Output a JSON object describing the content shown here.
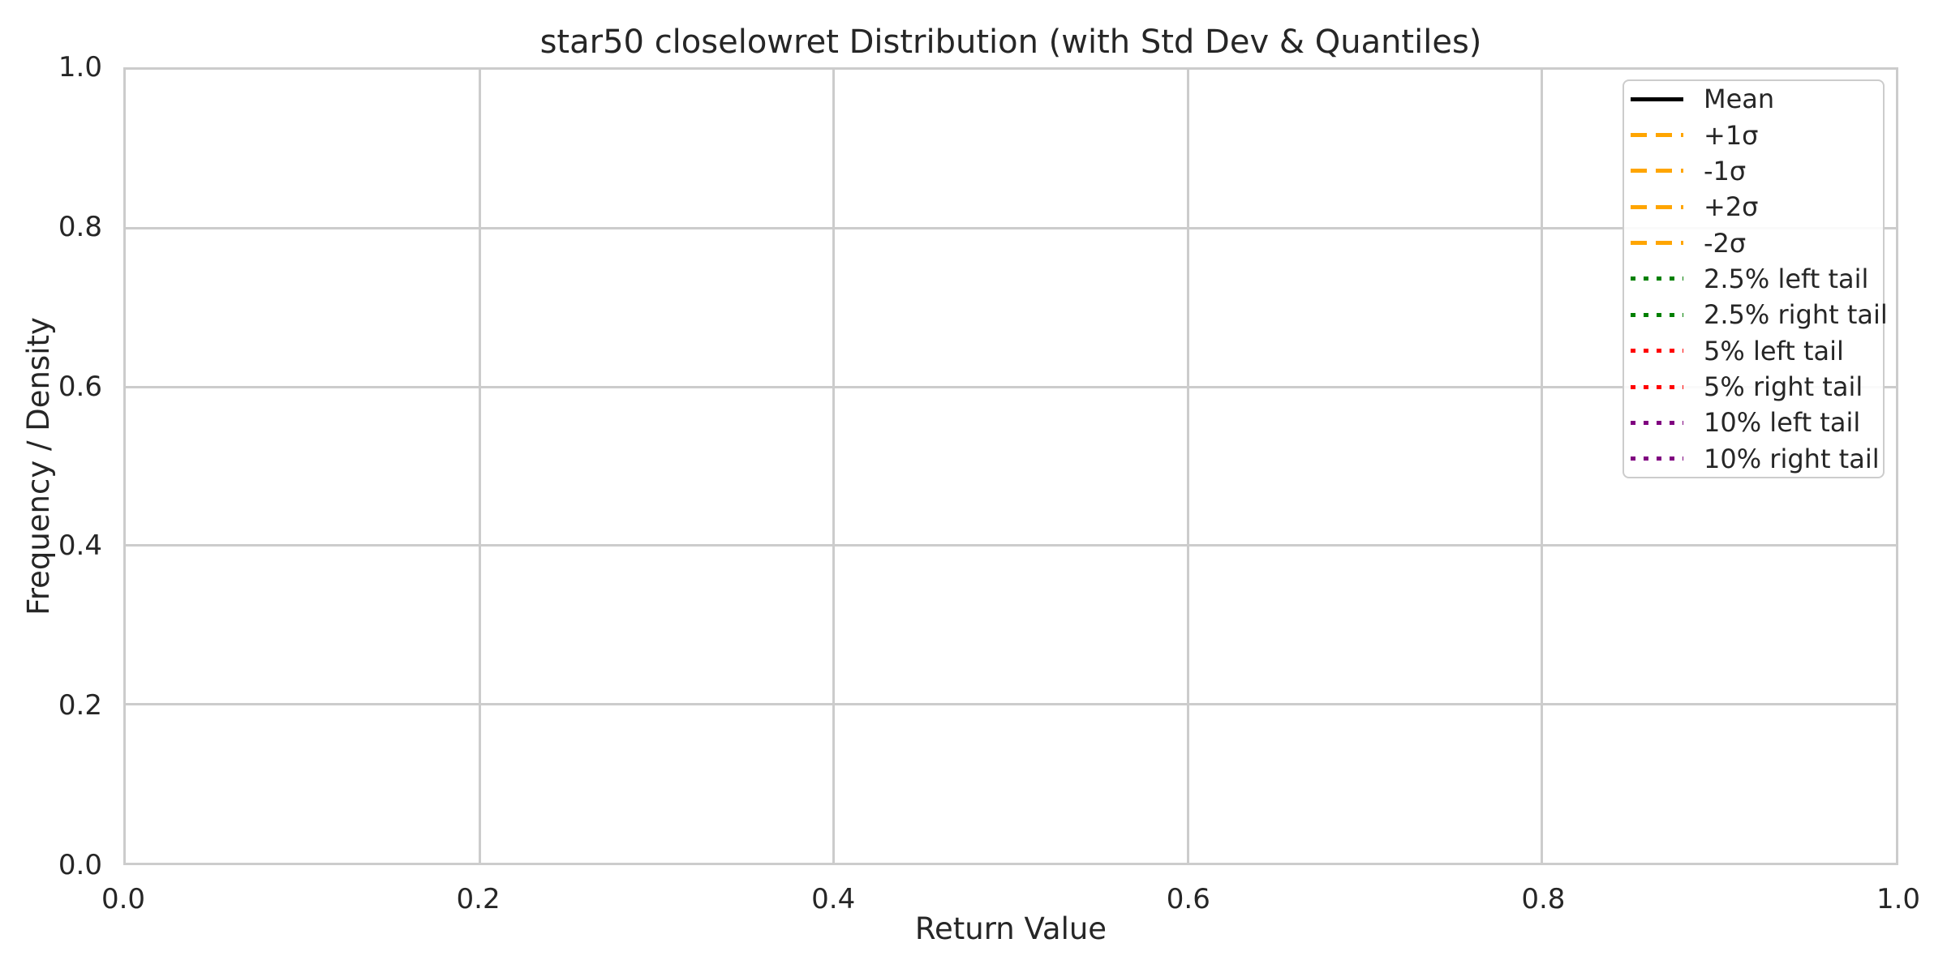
{
  "figure": {
    "title": "star50 closelowret Distribution (with Std Dev & Quantiles)",
    "xlabel": "Return Value",
    "ylabel": "Frequency / Density",
    "x_tick_labels": [
      "0.0",
      "0.2",
      "0.4",
      "0.6",
      "0.8",
      "1.0"
    ],
    "y_tick_labels": [
      "0.0",
      "0.2",
      "0.4",
      "0.6",
      "0.8",
      "1.0"
    ]
  },
  "legend": {
    "items": [
      {
        "label": "Mean",
        "color": "#000000",
        "style": "solid"
      },
      {
        "label": "+1σ",
        "color": "#FFA500",
        "style": "dashed"
      },
      {
        "label": "-1σ",
        "color": "#FFA500",
        "style": "dashed"
      },
      {
        "label": "+2σ",
        "color": "#FFA500",
        "style": "dashed"
      },
      {
        "label": "-2σ",
        "color": "#FFA500",
        "style": "dashed"
      },
      {
        "label": "2.5% left tail",
        "color": "#008000",
        "style": "dotted"
      },
      {
        "label": "2.5% right tail",
        "color": "#008000",
        "style": "dotted"
      },
      {
        "label": "5% left tail",
        "color": "#FF0000",
        "style": "dotted"
      },
      {
        "label": "5% right tail",
        "color": "#FF0000",
        "style": "dotted"
      },
      {
        "label": "10% left tail",
        "color": "#800080",
        "style": "dotted"
      },
      {
        "label": "10% right tail",
        "color": "#800080",
        "style": "dotted"
      }
    ]
  },
  "colors": {
    "text": "#262626",
    "grid": "#cccccc",
    "spine": "#cccccc",
    "background": "#ffffff"
  },
  "chart_data": {
    "type": "line",
    "title": "star50 closelowret Distribution (with Std Dev & Quantiles)",
    "xlabel": "Return Value",
    "ylabel": "Frequency / Density",
    "xlim": [
      0.0,
      1.0
    ],
    "ylim": [
      0.0,
      1.0
    ],
    "x_ticks": [
      0.0,
      0.2,
      0.4,
      0.6,
      0.8,
      1.0
    ],
    "y_ticks": [
      0.0,
      0.2,
      0.4,
      0.6,
      0.8,
      1.0
    ],
    "grid": true,
    "grid_color": "#cccccc",
    "legend_position": "upper right",
    "series": [],
    "plot_content": "empty axes — no curves, histogram bars, or reference lines are drawn inside the 0–1 plot area; only the legend describes the intended Mean / sigma / quantile lines",
    "legend_entries": [
      {
        "label": "Mean",
        "color": "#000000",
        "linestyle": "solid"
      },
      {
        "label": "+1σ",
        "color": "#FFA500",
        "linestyle": "dashed"
      },
      {
        "label": "-1σ",
        "color": "#FFA500",
        "linestyle": "dashed"
      },
      {
        "label": "+2σ",
        "color": "#FFA500",
        "linestyle": "dashed"
      },
      {
        "label": "-2σ",
        "color": "#FFA500",
        "linestyle": "dashed"
      },
      {
        "label": "2.5% left tail",
        "color": "#008000",
        "linestyle": "dotted"
      },
      {
        "label": "2.5% right tail",
        "color": "#008000",
        "linestyle": "dotted"
      },
      {
        "label": "5% left tail",
        "color": "#FF0000",
        "linestyle": "dotted"
      },
      {
        "label": "5% right tail",
        "color": "#FF0000",
        "linestyle": "dotted"
      },
      {
        "label": "10% left tail",
        "color": "#800080",
        "linestyle": "dotted"
      },
      {
        "label": "10% right tail",
        "color": "#800080",
        "linestyle": "dotted"
      }
    ]
  }
}
